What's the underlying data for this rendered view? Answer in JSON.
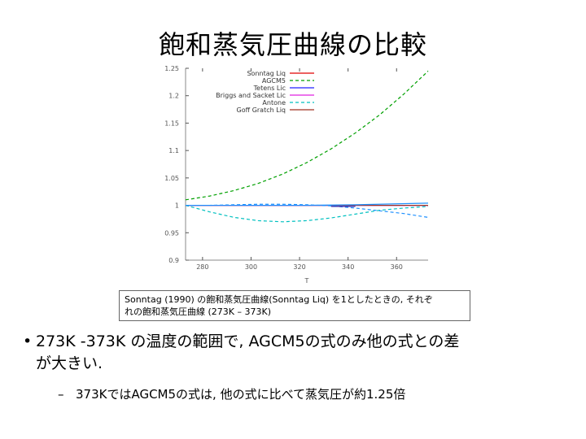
{
  "slide": {
    "title": "飽和蒸気圧曲線の比較",
    "caption_line1": "Sonntag (1990) の飽和蒸気圧曲線(Sonntag Liq) を1としたときの, それぞ",
    "caption_line2": "れの飽和蒸気圧曲線 (273K – 373K)",
    "bullet_marker": "•",
    "bullet_text_line1": "273K -373K の温度の範囲で, AGCM5の式のみ他の式との差",
    "bullet_text_line2": "が大きい.",
    "sub_marker": "–",
    "sub_text": "373KではAGCM5の式は, 他の式に比べて蒸気圧が約1.25倍"
  },
  "chart_data": {
    "type": "line",
    "title": "",
    "xlabel": "T",
    "ylabel": "",
    "xlim": [
      273,
      373
    ],
    "ylim": [
      0.9,
      1.25
    ],
    "xticks": [
      280,
      300,
      320,
      340,
      360
    ],
    "yticks": [
      0.9,
      0.95,
      1.0,
      1.05,
      1.1,
      1.15,
      1.2,
      1.25
    ],
    "ytick_labels": [
      "0.9",
      "0.95",
      "1",
      "1.05",
      "1.1",
      "1.15",
      "1.2",
      "1.25"
    ],
    "legend_position": "top-left",
    "grid": false,
    "series": [
      {
        "name": "Sonntag Liq",
        "color": "#e00000",
        "style": "solid",
        "x": [
          273,
          373
        ],
        "y": [
          1.0,
          1.0
        ]
      },
      {
        "name": "AGCM5",
        "color": "#00a000",
        "style": "dashed",
        "x": [
          273,
          283,
          293,
          303,
          313,
          323,
          333,
          343,
          353,
          363,
          373
        ],
        "y": [
          1.01,
          1.017,
          1.027,
          1.04,
          1.057,
          1.078,
          1.103,
          1.132,
          1.165,
          1.203,
          1.245
        ]
      },
      {
        "name": "Tetens Lic",
        "color": "#2020ff",
        "style": "solid",
        "x": [
          273,
          373
        ],
        "y": [
          1.0,
          1.0
        ]
      },
      {
        "name": "Briggs and Sacket Lic",
        "color": "#e020e0",
        "style": "solid",
        "x": [
          273,
          373
        ],
        "y": [
          1.0,
          1.0
        ]
      },
      {
        "name": "Antone",
        "color": "#00c0c0",
        "style": "dashed",
        "x": [
          273,
          283,
          293,
          303,
          313,
          323,
          333,
          343,
          353,
          363,
          373
        ],
        "y": [
          1.0,
          0.988,
          0.978,
          0.972,
          0.97,
          0.972,
          0.977,
          0.984,
          0.991,
          0.995,
          0.998
        ]
      },
      {
        "name": "Goff Gratch Liq",
        "color": "#a03020",
        "style": "solid",
        "x": [
          273,
          373
        ],
        "y": [
          1.0,
          1.0
        ]
      },
      {
        "name": "",
        "color": "#1e90ff",
        "style": "dashed",
        "x": [
          273,
          283,
          293,
          303,
          313,
          323,
          333,
          343,
          353,
          363,
          373
        ],
        "y": [
          1.0,
          1.0,
          1.001,
          1.002,
          1.002,
          1.001,
          0.999,
          0.995,
          0.99,
          0.985,
          0.978
        ]
      },
      {
        "name": "",
        "color": "#1e90ff",
        "style": "solid",
        "x": [
          273,
          323,
          343,
          373
        ],
        "y": [
          1.0,
          1.0,
          1.001,
          1.004
        ]
      },
      {
        "name": "",
        "color": "#2222aa",
        "style": "solid",
        "x": [
          333,
          343
        ],
        "y": [
          0.998,
          0.998
        ]
      }
    ]
  }
}
